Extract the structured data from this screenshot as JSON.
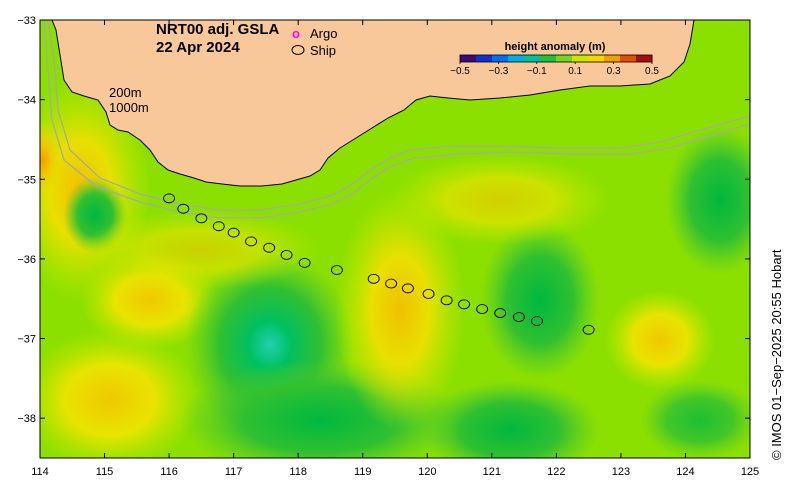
{
  "title": {
    "line1": "NRT00 adj. GSLA",
    "line2": "22 Apr 2024"
  },
  "legend": {
    "argo_label": "Argo",
    "argo_symbol": "o",
    "ship_label": "Ship"
  },
  "isobaths": {
    "shallow": "200m",
    "deep": "1000m"
  },
  "colorbar": {
    "title": "height anomaly (m)",
    "ticks": [
      "−0.5",
      "−0.3",
      "−0.1",
      "0.1",
      "0.3",
      "0.5"
    ],
    "tick_values": [
      -0.5,
      -0.3,
      -0.1,
      0.1,
      0.3,
      0.5
    ],
    "colors": [
      "#3a0a7a",
      "#1030d0",
      "#0070f0",
      "#00b0e0",
      "#00c0a0",
      "#20c040",
      "#70d820",
      "#c8e800",
      "#f0d800",
      "#f0a000",
      "#e05000",
      "#a01010"
    ]
  },
  "axes": {
    "x_ticks": [
      "114",
      "115",
      "116",
      "117",
      "118",
      "119",
      "120",
      "121",
      "122",
      "123",
      "124",
      "125"
    ],
    "x_values": [
      114,
      115,
      116,
      117,
      118,
      119,
      120,
      121,
      122,
      123,
      124,
      125
    ],
    "y_ticks": [
      "−33",
      "−34",
      "−35",
      "−36",
      "−37",
      "−38"
    ],
    "y_values": [
      -33,
      -34,
      -35,
      -36,
      -37,
      -38
    ],
    "xlim": [
      114,
      125
    ],
    "ylim": [
      -38.5,
      -33
    ]
  },
  "credit": "© IMOS 01−Sep−2025 20:55 Hobart",
  "ship_track": [
    [
      116.0,
      -35.24
    ],
    [
      116.22,
      -35.37
    ],
    [
      116.5,
      -35.49
    ],
    [
      116.77,
      -35.59
    ],
    [
      117.0,
      -35.67
    ],
    [
      117.27,
      -35.78
    ],
    [
      117.55,
      -35.86
    ],
    [
      117.82,
      -35.95
    ],
    [
      118.1,
      -36.05
    ],
    [
      118.6,
      -36.14
    ],
    [
      119.17,
      -36.25
    ],
    [
      119.44,
      -36.31
    ],
    [
      119.7,
      -36.37
    ],
    [
      120.02,
      -36.44
    ],
    [
      120.3,
      -36.52
    ],
    [
      120.57,
      -36.57
    ],
    [
      120.85,
      -36.63
    ],
    [
      121.13,
      -36.68
    ],
    [
      121.42,
      -36.73
    ],
    [
      121.7,
      -36.78
    ],
    [
      122.5,
      -36.89
    ]
  ],
  "colors": {
    "land": "#f9c89a",
    "ocean_base": "#8ce000",
    "isobath": "#a0a0a0",
    "ship_marker": "#000000",
    "argo_marker": "#ff00ff"
  }
}
